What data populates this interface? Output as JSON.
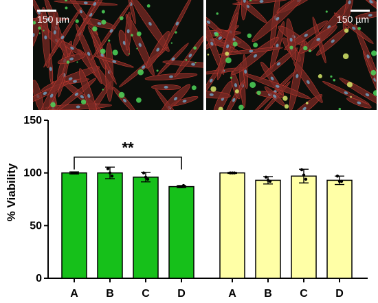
{
  "panels": [
    {
      "scale_label": "150 µm"
    },
    {
      "scale_label": "150 µm"
    }
  ],
  "chart_data": {
    "type": "bar",
    "ylabel": "% Viability",
    "ylim": [
      0,
      150
    ],
    "yticks": [
      0,
      50,
      100,
      150
    ],
    "groups": [
      {
        "color": "#16c01a",
        "categories": [
          "A",
          "B",
          "C",
          "D"
        ],
        "values": [
          100,
          100,
          96,
          87
        ],
        "error": [
          1,
          5.5,
          4.5,
          1
        ],
        "points": [
          [
            100,
            100,
            100
          ],
          [
            104,
            100,
            97
          ],
          [
            100,
            96,
            94
          ],
          [
            87,
            87,
            88
          ]
        ]
      },
      {
        "color": "#ffffa6",
        "categories": [
          "A",
          "B",
          "C",
          "D"
        ],
        "values": [
          100,
          93,
          97,
          93
        ],
        "error": [
          0.5,
          3.5,
          6.5,
          4
        ],
        "points": [
          [
            100,
            100,
            100
          ],
          [
            96,
            93,
            92
          ],
          [
            103,
            98,
            94
          ],
          [
            97,
            92,
            92
          ]
        ]
      }
    ],
    "significance": {
      "label": "**",
      "from": "A",
      "to": "D",
      "group": 0,
      "y": 115
    }
  }
}
